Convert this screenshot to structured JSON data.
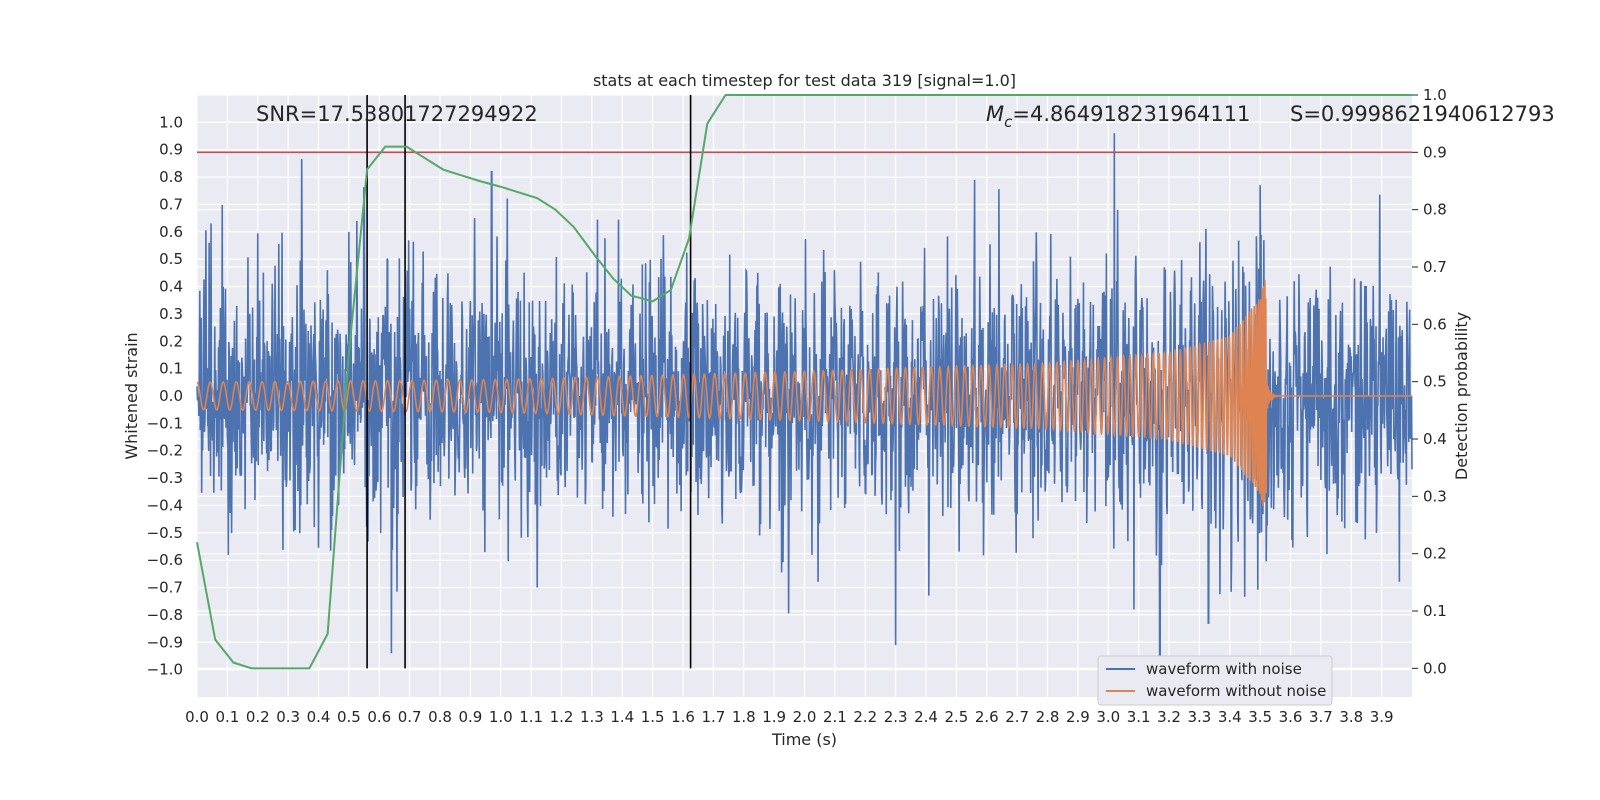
{
  "chart_data": {
    "type": "line",
    "title": "stats at each timestep for test data 319 [signal=1.0]",
    "xlabel": "Time (s)",
    "ylabel": "Whitened strain",
    "ylabel_right": "Detection probability",
    "xlim": [
      0.0,
      4.0
    ],
    "ylim": [
      -1.1,
      1.1
    ],
    "ylim_right": [
      -0.05,
      1.0
    ],
    "x_ticks": [
      "0.0",
      "0.1",
      "0.2",
      "0.3",
      "0.4",
      "0.5",
      "0.6",
      "0.7",
      "0.8",
      "0.9",
      "1.0",
      "1.1",
      "1.2",
      "1.3",
      "1.4",
      "1.5",
      "1.6",
      "1.7",
      "1.8",
      "1.9",
      "2.0",
      "2.1",
      "2.2",
      "2.3",
      "2.4",
      "2.5",
      "2.6",
      "2.7",
      "2.8",
      "2.9",
      "3.0",
      "3.1",
      "3.2",
      "3.3",
      "3.4",
      "3.5",
      "3.6",
      "3.7",
      "3.8",
      "3.9"
    ],
    "y_ticks": [
      "1.0",
      "0.9",
      "0.8",
      "0.7",
      "0.6",
      "0.5",
      "0.4",
      "0.3",
      "0.2",
      "0.1",
      "0.0",
      "−0.1",
      "−0.2",
      "−0.3",
      "−0.4",
      "−0.5",
      "−0.6",
      "−0.7",
      "−0.8",
      "−0.9",
      "−1.0"
    ],
    "y_ticks_right": [
      "1.0",
      "0.9",
      "0.8",
      "0.7",
      "0.6",
      "0.5",
      "0.4",
      "0.3",
      "0.2",
      "0.1",
      "0.0"
    ],
    "grid": true,
    "legend_position": "bottom-right",
    "colors": {
      "noisy": "#4c72b0",
      "clean": "#dd8452",
      "probability": "#55a868",
      "threshold": "#c44e52",
      "markers": "#000000",
      "background": "#eaeaf2"
    },
    "series": [
      {
        "name": "waveform with noise",
        "description_of_shape": "dense noise, amplitude approx ±0.3 with spikes to ±0.85",
        "noise_amplitude": 0.3,
        "notable_peaks": [
          {
            "x": 0.04,
            "y": 0.56
          },
          {
            "x": 0.5,
            "y": 0.6
          },
          {
            "x": 0.55,
            "y": 0.76
          },
          {
            "x": 0.64,
            "y": -0.94
          },
          {
            "x": 0.97,
            "y": 0.82
          },
          {
            "x": 1.12,
            "y": -0.7
          },
          {
            "x": 2.3,
            "y": -0.91
          },
          {
            "x": 2.56,
            "y": 0.79
          },
          {
            "x": 3.02,
            "y": 0.96
          },
          {
            "x": 3.17,
            "y": -1.04
          },
          {
            "x": 3.33,
            "y": -0.83
          },
          {
            "x": 3.5,
            "y": 0.77
          }
        ]
      },
      {
        "name": "waveform without noise",
        "description_of_shape": "chirp with growing amplitude and frequency, merger near t=3.52s",
        "envelope": [
          {
            "x": 0.0,
            "y": 0.05
          },
          {
            "x": 1.0,
            "y": 0.06
          },
          {
            "x": 2.0,
            "y": 0.09
          },
          {
            "x": 2.8,
            "y": 0.12
          },
          {
            "x": 3.2,
            "y": 0.16
          },
          {
            "x": 3.4,
            "y": 0.22
          },
          {
            "x": 3.5,
            "y": 0.36
          },
          {
            "x": 3.515,
            "y": 0.43
          }
        ],
        "merger_time": 3.52
      },
      {
        "name": "",
        "axis": "right",
        "x": [
          0.0,
          0.06,
          0.12,
          0.18,
          0.25,
          0.31,
          0.37,
          0.43,
          0.5,
          0.56,
          0.62,
          0.69,
          0.75,
          0.81,
          0.87,
          0.93,
          1.0,
          1.06,
          1.12,
          1.18,
          1.24,
          1.31,
          1.37,
          1.43,
          1.5,
          1.56,
          1.62,
          1.68,
          1.74,
          1.8,
          2.0,
          2.5,
          3.0,
          3.5,
          4.0
        ],
        "values": [
          0.22,
          0.05,
          0.01,
          0.0,
          0.0,
          0.0,
          0.0,
          0.06,
          0.55,
          0.87,
          0.91,
          0.91,
          0.89,
          0.87,
          0.86,
          0.85,
          0.84,
          0.83,
          0.82,
          0.8,
          0.77,
          0.72,
          0.68,
          0.65,
          0.64,
          0.66,
          0.75,
          0.95,
          1.0,
          1.0,
          1.0,
          1.0,
          1.0,
          1.0,
          1.0
        ]
      }
    ],
    "threshold_right": 0.9,
    "vertical_markers": [
      0.56,
      0.685,
      1.625
    ],
    "annotations": {
      "snr": "SNR=17.53801727294922",
      "mc_symbol": "M",
      "mc_sub": "c",
      "mc_value": "=4.864918231964111",
      "s": "S=0.9998621940612793"
    },
    "legend": [
      "waveform with noise",
      "waveform without noise"
    ]
  }
}
